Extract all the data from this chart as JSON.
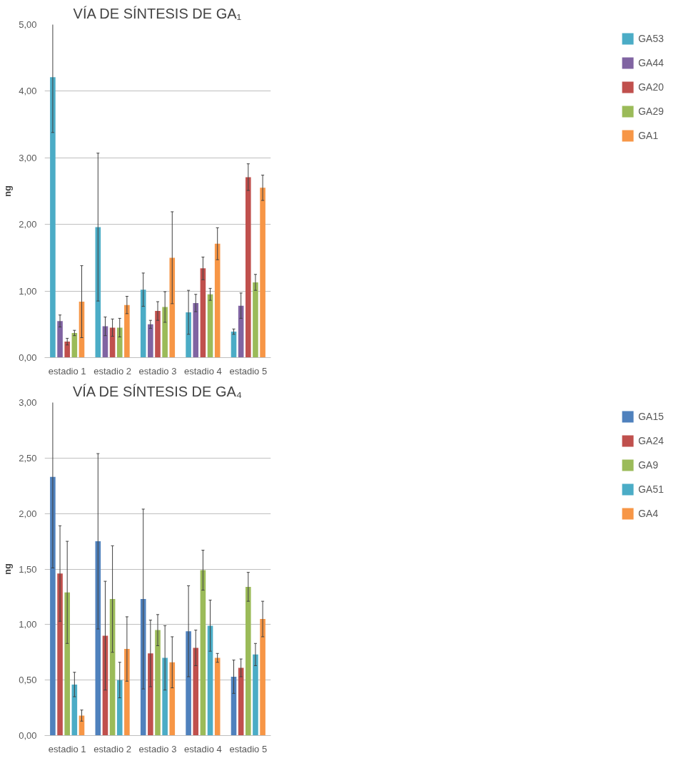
{
  "chart_data": [
    {
      "type": "bar",
      "title": "VÍA DE SÍNTESIS DE GA₁",
      "ylabel": "ng",
      "categories": [
        "estadio 1",
        "estadio 2",
        "estadio 3",
        "estadio 4",
        "estadio 5"
      ],
      "ylim": [
        0,
        5
      ],
      "yticks": [
        {
          "value": 0,
          "label": "0,00"
        },
        {
          "value": 1,
          "label": "1,00"
        },
        {
          "value": 2,
          "label": "2,00"
        },
        {
          "value": 3,
          "label": "3,00"
        },
        {
          "value": 4,
          "label": "4,00"
        },
        {
          "value": 5,
          "label": "5,00"
        }
      ],
      "grid": "y",
      "legend": "right",
      "series": [
        {
          "name": "GA53",
          "color": "#4bacc6",
          "values": [
            4.21,
            1.96,
            1.02,
            0.68,
            0.39
          ],
          "errors": [
            0.83,
            1.11,
            0.25,
            0.33,
            0.04
          ]
        },
        {
          "name": "GA44",
          "color": "#8064a2",
          "values": [
            0.55,
            0.47,
            0.5,
            0.82,
            0.78
          ],
          "errors": [
            0.09,
            0.14,
            0.06,
            0.13,
            0.19
          ]
        },
        {
          "name": "GA20",
          "color": "#c0504d",
          "values": [
            0.24,
            0.45,
            0.7,
            1.34,
            2.71
          ],
          "errors": [
            0.05,
            0.13,
            0.14,
            0.17,
            0.2
          ]
        },
        {
          "name": "GA29",
          "color": "#9bbb59",
          "values": [
            0.37,
            0.45,
            0.76,
            0.95,
            1.13
          ],
          "errors": [
            0.04,
            0.14,
            0.23,
            0.09,
            0.12
          ]
        },
        {
          "name": "GA1",
          "color": "#f79646",
          "values": [
            0.84,
            0.79,
            1.5,
            1.71,
            2.55
          ],
          "errors": [
            0.54,
            0.13,
            0.69,
            0.24,
            0.19
          ]
        }
      ]
    },
    {
      "type": "bar",
      "title": "VÍA DE SÍNTESIS DE GA₄",
      "ylabel": "ng",
      "categories": [
        "estadio 1",
        "estadio 2",
        "estadio 3",
        "estadio 4",
        "estadio 5"
      ],
      "ylim": [
        0,
        3
      ],
      "yticks": [
        {
          "value": 0,
          "label": "0,00"
        },
        {
          "value": 0.5,
          "label": "0,50"
        },
        {
          "value": 1,
          "label": "1,00"
        },
        {
          "value": 1.5,
          "label": "1,50"
        },
        {
          "value": 2,
          "label": "2,00"
        },
        {
          "value": 2.5,
          "label": "2,50"
        },
        {
          "value": 3,
          "label": "3,00"
        }
      ],
      "grid": "y",
      "legend": "right",
      "series": [
        {
          "name": "GA15",
          "color": "#4f81bd",
          "values": [
            2.33,
            1.75,
            1.23,
            0.94,
            0.53
          ],
          "errors": [
            0.82,
            0.79,
            0.81,
            0.41,
            0.15
          ]
        },
        {
          "name": "GA24",
          "color": "#c0504d",
          "values": [
            1.46,
            0.9,
            0.74,
            0.79,
            0.61
          ],
          "errors": [
            0.43,
            0.49,
            0.3,
            0.16,
            0.08
          ]
        },
        {
          "name": "GA9",
          "color": "#9bbb59",
          "values": [
            1.29,
            1.23,
            0.95,
            1.49,
            1.34
          ],
          "errors": [
            0.46,
            0.48,
            0.14,
            0.18,
            0.13
          ]
        },
        {
          "name": "GA51",
          "color": "#4bacc6",
          "values": [
            0.46,
            0.5,
            0.7,
            0.99,
            0.73
          ],
          "errors": [
            0.11,
            0.16,
            0.29,
            0.23,
            0.1
          ]
        },
        {
          "name": "GA4",
          "color": "#f79646",
          "values": [
            0.18,
            0.78,
            0.66,
            0.7,
            1.05
          ],
          "errors": [
            0.05,
            0.29,
            0.23,
            0.04,
            0.16
          ]
        }
      ]
    }
  ]
}
